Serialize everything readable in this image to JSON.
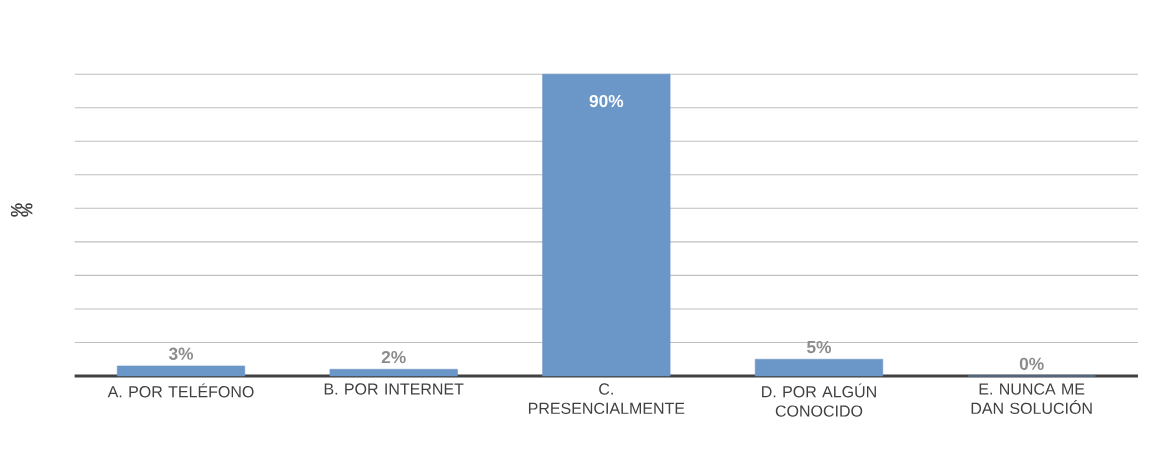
{
  "chart_data": {
    "type": "bar",
    "ylabel": "%",
    "categories": [
      "A. POR TELÉFONO",
      "B. POR INTERNET",
      "C. PRESENCIALMENTE",
      "D. POR ALGÚN CONOCIDO",
      "E. NUNCA ME DAN SOLUCIÓN"
    ],
    "values": [
      3,
      2,
      90,
      5,
      0
    ],
    "value_labels": [
      "3%",
      "2%",
      "90%",
      "5%",
      "0%"
    ],
    "color": "#6a96c8",
    "tick_labels": "x",
    "grid": "y"
  }
}
